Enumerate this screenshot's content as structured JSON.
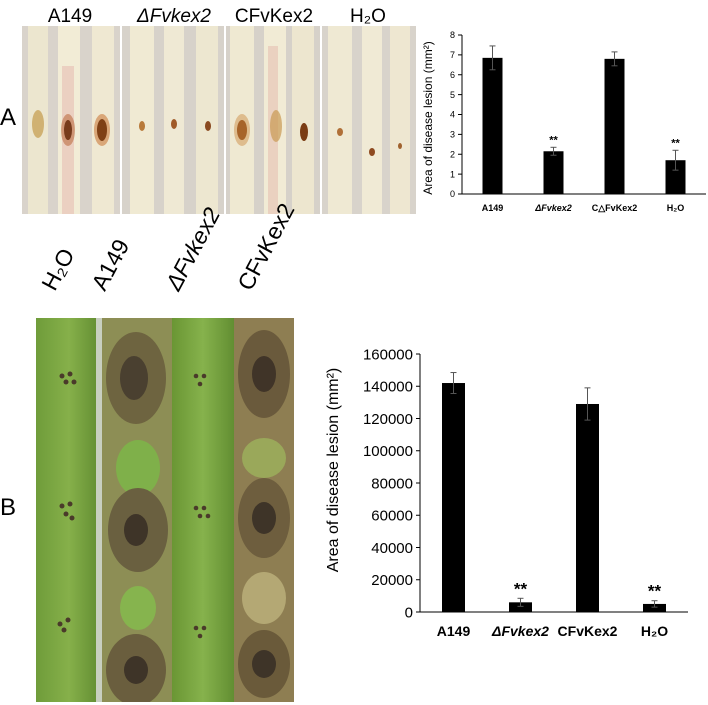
{
  "panel_a": {
    "letter": "A",
    "photo_labels": [
      "A149",
      "ΔFvkex2",
      "CFvKex2",
      "H₂O"
    ],
    "chart_data": {
      "type": "bar",
      "ylabel": "Area of disease lesion (mm²)",
      "categories": [
        "A149",
        "ΔFvkex2",
        "C△FvKex2",
        "H₂O"
      ],
      "values": [
        6.85,
        2.15,
        6.8,
        1.7
      ],
      "errors": [
        0.6,
        0.2,
        0.35,
        0.5
      ],
      "significance": [
        "",
        "**",
        "",
        "**"
      ],
      "ylim": [
        0,
        8
      ],
      "yticks": [
        "0",
        "1",
        "2",
        "3",
        "4",
        "5",
        "6",
        "7",
        "8"
      ]
    }
  },
  "panel_b": {
    "letter": "B",
    "photo_labels": [
      "H₂O",
      "A149",
      "ΔFvkex2",
      "CFvKex2"
    ],
    "chart_data": {
      "type": "bar",
      "ylabel": "Area of disease lesion (mm²)",
      "categories": [
        "A149",
        "ΔFvkex2",
        "CFvKex2",
        "H₂O"
      ],
      "values": [
        142000,
        6000,
        129000,
        5000
      ],
      "errors": [
        6500,
        2500,
        10000,
        2000
      ],
      "significance": [
        "",
        "**",
        "",
        "**"
      ],
      "ylim": [
        0,
        160000
      ],
      "yticks": [
        "0",
        "20000",
        "40000",
        "60000",
        "80000",
        "100000",
        "120000",
        "140000",
        "160000"
      ]
    }
  }
}
